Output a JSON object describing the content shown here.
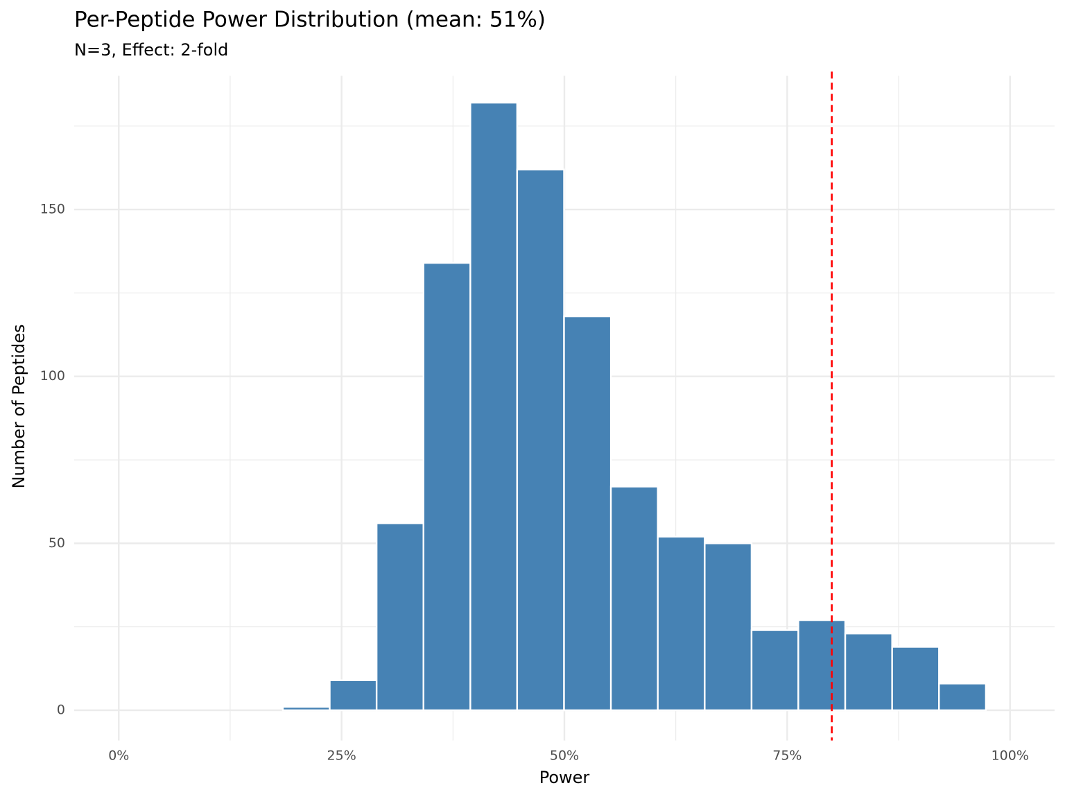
{
  "chart_data": {
    "type": "histogram",
    "title": "Per-Peptide Power Distribution (mean: 51%)",
    "subtitle": "N=3, Effect: 2-fold",
    "x_label": "Power",
    "y_label": "Number of Peptides",
    "bins": [
      2.64,
      7.9,
      13.16,
      18.41,
      23.67,
      28.93,
      34.19,
      39.45,
      44.7,
      49.96,
      55.22,
      60.48,
      65.74,
      71.0,
      76.25,
      81.51,
      86.77,
      92.03,
      97.29
    ],
    "values": [
      0,
      0,
      0,
      1,
      9,
      56,
      134,
      182,
      162,
      118,
      67,
      52,
      50,
      24,
      27,
      23,
      19,
      8
    ],
    "color": "#4682b4",
    "edge_color": "#ffffff",
    "reference_line": 80,
    "reference_color": "#ff0000",
    "xlim": [
      -5,
      105
    ],
    "ylim": [
      -9.05,
      190.05
    ],
    "xticks": [
      {
        "value": 0,
        "label": "0%"
      },
      {
        "value": 25,
        "label": "25%"
      },
      {
        "value": 50,
        "label": "50%"
      },
      {
        "value": 75,
        "label": "75%"
      },
      {
        "value": 100,
        "label": "100%"
      }
    ],
    "yticks": [
      0,
      50,
      100,
      150
    ],
    "x_minor_grid": [
      12.5,
      37.5,
      62.5,
      87.5
    ],
    "y_minor_grid": [
      25,
      75,
      125,
      175
    ],
    "grid": true
  }
}
